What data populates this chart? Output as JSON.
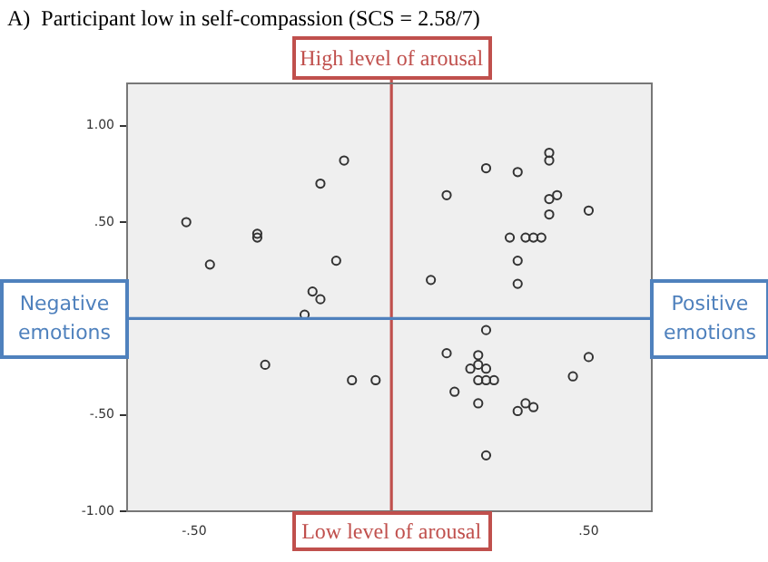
{
  "chart_data": {
    "type": "scatter",
    "title": "A)  Participant low in self-compassion (SCS = 2.58/7)",
    "x": [
      -0.12,
      -0.18,
      -0.52,
      -0.34,
      -0.34,
      -0.46,
      -0.14,
      -0.2,
      -0.18,
      -0.22,
      -0.32,
      -0.1,
      -0.04,
      0.4,
      0.4,
      0.24,
      0.32,
      0.14,
      0.4,
      0.42,
      0.5,
      0.4,
      0.3,
      0.34,
      0.36,
      0.38,
      0.32,
      0.1,
      0.32,
      0.24,
      0.14,
      0.22,
      0.22,
      0.5,
      0.2,
      0.24,
      0.22,
      0.24,
      0.26,
      0.46,
      0.16,
      0.22,
      0.32,
      0.34,
      0.36,
      0.24
    ],
    "series": [
      {
        "color": "#333333",
        "values": [
          0.82,
          0.7,
          0.5,
          0.44,
          0.42,
          0.28,
          0.3,
          0.14,
          0.1,
          0.02,
          -0.24,
          -0.32,
          -0.32,
          0.86,
          0.82,
          0.78,
          0.76,
          0.64,
          0.62,
          0.64,
          0.56,
          0.54,
          0.42,
          0.42,
          0.42,
          0.42,
          0.3,
          0.2,
          0.18,
          -0.06,
          -0.18,
          -0.19,
          -0.24,
          -0.2,
          -0.26,
          -0.26,
          -0.32,
          -0.32,
          -0.32,
          -0.3,
          -0.38,
          -0.44,
          -0.48,
          -0.44,
          -0.46,
          -0.71
        ]
      }
    ],
    "marker": "circle",
    "grid": false,
    "legend": false,
    "xlim": [
      -0.67,
      0.66
    ],
    "xticks": [
      {
        "value": -0.5,
        "label": "-.50"
      },
      {
        "value": 0.5,
        "label": ".50"
      }
    ],
    "ylim": [
      -1,
      1.22
    ],
    "yticks": [
      {
        "value": -1,
        "label": "-1.00"
      },
      {
        "value": -0.5,
        "label": "-.50"
      },
      {
        "value": 0.5,
        "label": ".50"
      },
      {
        "value": 1,
        "label": "1.00"
      }
    ],
    "ref_lines": [
      {
        "axis": "x",
        "value": 0,
        "color": "#c0504d"
      },
      {
        "axis": "y",
        "value": 0,
        "color": "#4f81bd"
      }
    ],
    "annotations": [
      "High level of arousal",
      "Low level of arousal",
      "Negative emotions",
      "Positive emotions"
    ]
  }
}
